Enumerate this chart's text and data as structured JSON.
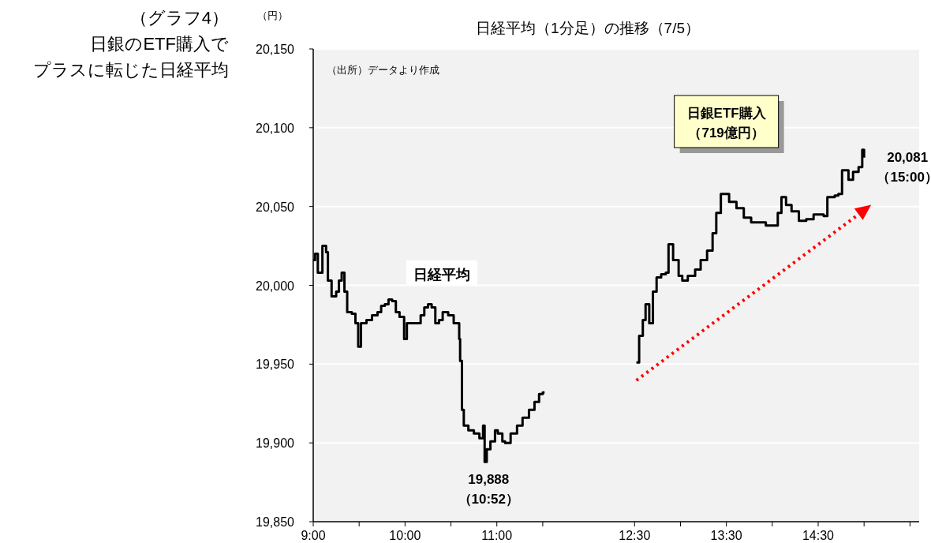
{
  "chart_data": {
    "type": "step",
    "title": "日経平均（1分足）の推移（7/5）",
    "subtitle": "（グラフ4）",
    "ylabel": "（円）",
    "x": [
      9.0,
      9.02,
      9.05,
      9.1,
      9.14,
      9.16,
      9.2,
      9.25,
      9.28,
      9.31,
      9.34,
      9.37,
      9.42,
      9.46,
      9.49,
      9.52,
      9.58,
      9.64,
      9.7,
      9.74,
      9.78,
      9.82,
      9.86,
      9.9,
      9.94,
      9.99,
      10.02,
      10.1,
      10.17,
      10.21,
      10.25,
      10.29,
      10.33,
      10.37,
      10.41,
      10.47,
      10.53,
      10.59,
      10.6,
      10.62,
      10.64,
      10.69,
      10.75,
      10.81,
      10.85,
      10.867,
      10.89,
      10.93,
      10.98,
      11.01,
      11.06,
      11.09,
      11.15,
      11.22,
      11.28,
      11.35,
      11.41,
      11.46,
      11.5,
      11.52,
      12.52,
      12.55,
      12.59,
      12.62,
      12.66,
      12.7,
      12.74,
      12.79,
      12.84,
      12.87,
      12.92,
      12.98,
      13.02,
      13.08,
      13.16,
      13.22,
      13.29,
      13.35,
      13.39,
      13.44,
      13.48,
      13.53,
      13.61,
      13.69,
      13.77,
      13.85,
      13.93,
      14.01,
      14.06,
      14.1,
      14.15,
      14.21,
      14.29,
      14.37,
      14.45,
      14.56,
      14.6,
      14.68,
      14.72,
      14.76,
      14.83,
      14.88,
      14.94,
      14.98,
      15.0
    ],
    "series": [
      {
        "name": "日経平均",
        "color": "#000000",
        "values": [
          20016,
          20020,
          20008,
          20025,
          20021,
          20003,
          19993,
          19996,
          20003,
          20008,
          19996,
          19983,
          19982,
          19976,
          19961,
          19976,
          19978,
          19981,
          19983,
          19987,
          19988,
          19991,
          19990,
          19983,
          19980,
          19966,
          19976,
          19976,
          19981,
          19986,
          19988,
          19986,
          19976,
          19978,
          19983,
          19981,
          19976,
          19966,
          19952,
          19921,
          19911,
          19908,
          19906,
          19903,
          19911,
          19888,
          19896,
          19901,
          19908,
          19906,
          19901,
          19900,
          19906,
          19911,
          19916,
          19921,
          19926,
          19931,
          19932,
          null,
          19951,
          19968,
          19978,
          19988,
          19976,
          19996,
          20005,
          20007,
          20008,
          20026,
          20016,
          20006,
          20003,
          20006,
          20010,
          20016,
          20022,
          20033,
          20046,
          20058,
          20058,
          20053,
          20049,
          20043,
          20040,
          20040,
          20038,
          20038,
          20046,
          20056,
          20051,
          20047,
          20041,
          20042,
          20045,
          20044,
          20056,
          20057,
          20058,
          20073,
          20067,
          20072,
          20075,
          20086,
          20081
        ]
      }
    ],
    "xlim": [
      9,
      15.6
    ],
    "xticks": [
      {
        "value": 9,
        "label": "9:00"
      },
      {
        "value": 9.5,
        "label": null
      },
      {
        "value": 10,
        "label": "10:00"
      },
      {
        "value": 10.5,
        "label": null
      },
      {
        "value": 11,
        "label": "11:00"
      },
      {
        "value": 11.5,
        "label": null
      },
      {
        "value": 12.5,
        "label": "12:30"
      },
      {
        "value": 13,
        "label": null
      },
      {
        "value": 13.5,
        "label": "13:30"
      },
      {
        "value": 14,
        "label": null
      },
      {
        "value": 14.5,
        "label": "14:30"
      },
      {
        "value": 15,
        "label": null
      },
      {
        "value": 15.5,
        "label": null
      }
    ],
    "ylim": [
      19850,
      20150
    ],
    "yticks": [
      {
        "value": 19850,
        "label": "19,850"
      },
      {
        "value": 19900,
        "label": "19,900"
      },
      {
        "value": 19950,
        "label": "19,950"
      },
      {
        "value": 20000,
        "label": "20,000"
      },
      {
        "value": 20050,
        "label": "20,050"
      },
      {
        "value": 20100,
        "label": "20,100"
      },
      {
        "value": 20150,
        "label": "20,150"
      }
    ],
    "grid": "y",
    "annotations": [
      "（出所）データより作成",
      "日銀ETF購入",
      "（719億円）",
      "日銀のETF購入で",
      "プラスに転じた日経平均",
      {
        "text": "19,888\n（10:52）",
        "x": 10.867,
        "y": 19888
      },
      {
        "text": "20,081\n（15:00）",
        "x": 15.0,
        "y": 20081
      }
    ]
  }
}
